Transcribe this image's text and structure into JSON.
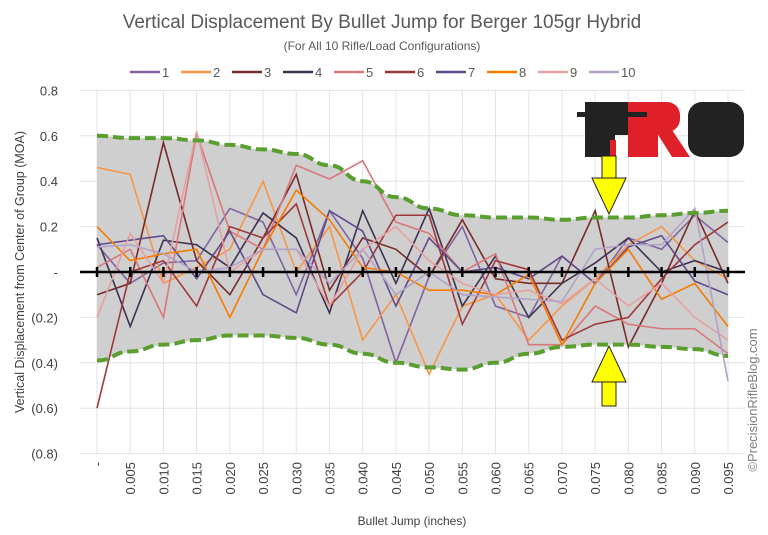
{
  "chart_data": {
    "type": "line",
    "title": "Vertical Displacement By Bullet Jump for Berger 105gr Hybrid",
    "subtitle": "(For All 10 Rifle/Load Configurations)",
    "xlabel": "Bullet Jump (inches)",
    "ylabel": "Vertical Displacement from Center of Group (MOA)",
    "ylim": [
      -0.8,
      0.8
    ],
    "yticks": [
      0.8,
      0.6,
      0.4,
      0.2,
      0,
      -0.2,
      -0.4,
      -0.6,
      -0.8
    ],
    "ytick_labels": [
      "0.8",
      "0.6",
      "0.4",
      "0.2",
      "-",
      "(0.2)",
      "(0.4)",
      "(0.6)",
      "(0.8)"
    ],
    "categories": [
      "-",
      "0.005",
      "0.010",
      "0.015",
      "0.020",
      "0.025",
      "0.030",
      "0.035",
      "0.040",
      "0.045",
      "0.050",
      "0.055",
      "0.060",
      "0.065",
      "0.070",
      "0.075",
      "0.080",
      "0.085",
      "0.090",
      "0.095"
    ],
    "legend_position": "top",
    "grid": true,
    "series": [
      {
        "name": "1",
        "color": "#8064A2",
        "values": [
          0.12,
          -0.05,
          0.04,
          0.05,
          0.28,
          0.22,
          -0.1,
          0.27,
          0.06,
          -0.4,
          -0.02,
          0.2,
          -0.15,
          -0.2,
          0.07,
          -0.05,
          0.15,
          0.1,
          0.25,
          0.13
        ]
      },
      {
        "name": "2",
        "color": "#F79646",
        "values": [
          0.46,
          0.43,
          -0.05,
          0.02,
          0.1,
          0.4,
          0.0,
          0.2,
          -0.3,
          -0.1,
          -0.45,
          -0.15,
          -0.1,
          -0.3,
          -0.15,
          -0.03,
          0.12,
          0.2,
          0.05,
          -0.03
        ]
      },
      {
        "name": "3",
        "color": "#772C2A",
        "values": [
          -0.1,
          -0.05,
          0.57,
          0.05,
          -0.1,
          0.15,
          0.43,
          -0.08,
          0.15,
          0.1,
          -0.02,
          0.23,
          -0.03,
          -0.05,
          -0.05,
          0.27,
          -0.33,
          -0.05,
          0.27,
          -0.05
        ]
      },
      {
        "name": "4",
        "color": "#3F3151",
        "values": [
          0.15,
          -0.24,
          0.14,
          0.12,
          0.02,
          0.26,
          0.15,
          -0.18,
          0.27,
          -0.05,
          0.28,
          -0.15,
          0.07,
          -0.2,
          -0.05,
          0.04,
          0.15,
          0.0,
          0.05,
          0.0
        ]
      },
      {
        "name": "5",
        "color": "#D9787A",
        "values": [
          0.02,
          0.1,
          -0.2,
          0.61,
          0.18,
          0.1,
          0.47,
          0.41,
          0.49,
          0.22,
          0.17,
          0.0,
          0.08,
          -0.32,
          -0.32,
          -0.15,
          -0.23,
          -0.25,
          -0.25,
          -0.36
        ]
      },
      {
        "name": "6",
        "color": "#A0373A",
        "values": [
          -0.6,
          0.0,
          0.05,
          -0.15,
          0.2,
          0.15,
          0.3,
          -0.15,
          0.0,
          0.25,
          0.25,
          -0.23,
          0.05,
          0.01,
          -0.3,
          -0.23,
          -0.2,
          -0.03,
          0.12,
          0.22
        ]
      },
      {
        "name": "7",
        "color": "#5F4B8B",
        "values": [
          0.12,
          0.14,
          0.16,
          -0.03,
          0.18,
          -0.1,
          -0.18,
          0.27,
          0.18,
          -0.15,
          0.15,
          0.0,
          0.02,
          -0.03,
          0.07,
          -0.05,
          0.11,
          0.16,
          -0.04,
          -0.1
        ]
      },
      {
        "name": "8",
        "color": "#F57C00",
        "values": [
          0.2,
          0.05,
          0.08,
          0.1,
          -0.2,
          0.1,
          0.36,
          0.23,
          0.02,
          0.0,
          -0.08,
          -0.08,
          -0.1,
          -0.01,
          -0.32,
          -0.05,
          0.1,
          -0.12,
          -0.05,
          -0.24
        ]
      },
      {
        "name": "9",
        "color": "#E6A0A0",
        "values": [
          -0.2,
          0.17,
          -0.05,
          0.62,
          0.0,
          0.1,
          0.1,
          -0.15,
          0.1,
          0.2,
          0.05,
          -0.05,
          -0.1,
          -0.08,
          -0.14,
          -0.03,
          -0.15,
          -0.05,
          -0.2,
          -0.3
        ]
      },
      {
        "name": "10",
        "color": "#B3A2C7",
        "values": [
          0.11,
          0.12,
          0.08,
          0.0,
          0.02,
          0.1,
          0.1,
          -0.05,
          0.1,
          -0.1,
          0.0,
          -0.1,
          -0.11,
          -0.12,
          -0.13,
          0.1,
          0.12,
          0.12,
          0.28,
          -0.48
        ]
      }
    ],
    "envelope": {
      "upper": [
        0.6,
        0.59,
        0.59,
        0.58,
        0.56,
        0.54,
        0.52,
        0.47,
        0.4,
        0.33,
        0.28,
        0.25,
        0.24,
        0.24,
        0.23,
        0.24,
        0.24,
        0.25,
        0.26,
        0.27
      ],
      "lower": [
        -0.39,
        -0.35,
        -0.32,
        -0.3,
        -0.28,
        -0.28,
        -0.29,
        -0.32,
        -0.36,
        -0.4,
        -0.42,
        -0.43,
        -0.4,
        -0.36,
        -0.33,
        -0.32,
        -0.32,
        -0.33,
        -0.34,
        -0.37
      ]
    }
  },
  "logo": {
    "text": "PRB"
  },
  "watermark": "©PrecisionRifleBlog.com",
  "colors": {
    "envelope_line": "#5A9E2F",
    "envelope_fill": "#CFCFCF",
    "arrow": "#FFFF00"
  }
}
